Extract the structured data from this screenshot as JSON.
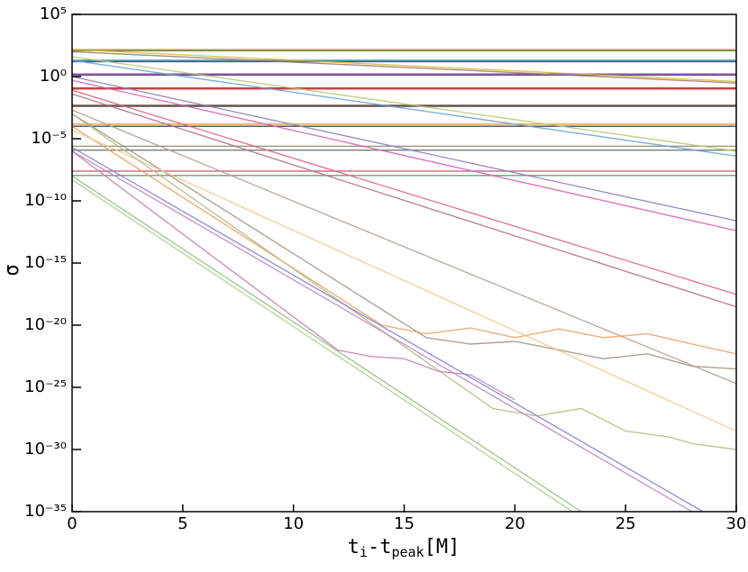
{
  "chart_data": {
    "type": "line",
    "ylabel": "σ",
    "xlabel": [
      "t",
      "i",
      "-t",
      "peak",
      "[M]"
    ],
    "xlim": [
      0,
      30
    ],
    "xticks": [
      0,
      5,
      10,
      15,
      20,
      25,
      30
    ],
    "ylim": [
      1e-35,
      100000.0
    ],
    "yscale": "log",
    "yticks": [
      {
        "value": 1e-35,
        "label": "10⁻³⁵"
      },
      {
        "value": 1e-30,
        "label": "10⁻³⁰"
      },
      {
        "value": 1e-25,
        "label": "10⁻²⁵"
      },
      {
        "value": 1e-20,
        "label": "10⁻²⁰"
      },
      {
        "value": 1e-15,
        "label": "10⁻¹⁵"
      },
      {
        "value": 1e-10,
        "label": "10⁻¹⁰"
      },
      {
        "value": 1e-05,
        "label": "10⁻⁵"
      },
      {
        "value": 1,
        "label": "10⁰"
      },
      {
        "value": 100000.0,
        "label": "10⁵"
      }
    ],
    "series": [
      {
        "color": "#d4a017",
        "x": [
          0,
          30
        ],
        "values": [
          150,
          150
        ]
      },
      {
        "color": "#4a6b3a",
        "x": [
          0,
          30
        ],
        "values": [
          120,
          120
        ]
      },
      {
        "color": "#1a8a8a",
        "x": [
          0,
          30
        ],
        "values": [
          20,
          20
        ]
      },
      {
        "color": "#1f3a7a",
        "x": [
          0,
          30
        ],
        "values": [
          16,
          16
        ]
      },
      {
        "color": "#7a2a8a",
        "x": [
          0,
          30
        ],
        "values": [
          1.6,
          1.6
        ]
      },
      {
        "color": "#4a3a9a",
        "x": [
          0,
          30
        ],
        "values": [
          1.3,
          1.3
        ]
      },
      {
        "color": "#b01818",
        "x": [
          0,
          30
        ],
        "values": [
          0.12,
          0.12
        ]
      },
      {
        "color": "#c82828",
        "x": [
          0,
          30
        ],
        "values": [
          0.1,
          0.1
        ]
      },
      {
        "color": "#6b4a3a",
        "x": [
          0,
          30
        ],
        "values": [
          0.005,
          0.005
        ]
      },
      {
        "color": "#3a3a3a",
        "x": [
          0,
          30
        ],
        "values": [
          0.004,
          0.004
        ]
      },
      {
        "color": "#e08a10",
        "x": [
          0,
          30
        ],
        "values": [
          0.00015,
          0.00015
        ]
      },
      {
        "color": "#2a2a2a",
        "x": [
          0,
          30
        ],
        "values": [
          0.0001,
          0.0001
        ]
      },
      {
        "color": "#8a8a70",
        "x": [
          0,
          30
        ],
        "values": [
          2.5e-06,
          2.5e-06
        ]
      },
      {
        "color": "#5a6a5a",
        "x": [
          0,
          30
        ],
        "values": [
          1.2e-06,
          1.2e-06
        ]
      },
      {
        "color": "#c04a6a",
        "x": [
          0,
          30
        ],
        "values": [
          2.5e-08,
          2.5e-08
        ]
      },
      {
        "color": "#3a9a5a",
        "x": [
          0,
          30
        ],
        "values": [
          1.1e-08,
          1.1e-08
        ]
      },
      {
        "color": "#d8b830",
        "x": [
          0,
          30
        ],
        "values": [
          150,
          0.4
        ]
      },
      {
        "color": "#9a7a6a",
        "x": [
          0,
          30
        ],
        "values": [
          100,
          0.3
        ]
      },
      {
        "color": "#6aa0d8",
        "x": [
          0,
          30
        ],
        "values": [
          20,
          4e-07
        ]
      },
      {
        "color": "#b8c870",
        "x": [
          0,
          30
        ],
        "values": [
          40,
          1e-06
        ]
      },
      {
        "color": "#8a80b8",
        "x": [
          0,
          30
        ],
        "values": [
          1,
          2.5e-12
        ]
      },
      {
        "color": "#d860b0",
        "x": [
          0,
          30
        ],
        "values": [
          0.5,
          4e-13
        ]
      },
      {
        "color": "#e06080",
        "x": [
          0,
          30
        ],
        "values": [
          0.08,
          3e-18
        ]
      },
      {
        "color": "#b07080",
        "x": [
          0,
          30
        ],
        "values": [
          0.04,
          3e-19
        ]
      },
      {
        "color": "#a09080",
        "x": [
          0,
          16,
          18,
          20,
          22,
          24,
          26,
          28,
          30
        ],
        "values": [
          0.001,
          1e-21,
          3e-22,
          5e-22,
          1e-22,
          2e-23,
          5e-23,
          5e-24,
          3e-24
        ]
      },
      {
        "color": "#b0a090",
        "x": [
          0,
          30
        ],
        "values": [
          0.002,
          2e-25
        ]
      },
      {
        "color": "#e8a060",
        "x": [
          0,
          14,
          16,
          18,
          20,
          22,
          24,
          26,
          28,
          30
        ],
        "values": [
          0.0001,
          1e-20,
          2e-21,
          6e-21,
          1e-21,
          5e-21,
          1e-21,
          2e-21,
          3e-22,
          5e-23
        ]
      },
      {
        "color": "#f0c890",
        "x": [
          0,
          30
        ],
        "values": [
          5e-05,
          3e-29
        ]
      },
      {
        "color": "#b8b880",
        "x": [
          0,
          19,
          21,
          23,
          25,
          27,
          28,
          30
        ],
        "values": [
          0.001,
          2e-27,
          5e-28,
          2e-27,
          3e-29,
          1e-29,
          3e-30,
          1e-30
        ]
      },
      {
        "color": "#c080b0",
        "x": [
          0,
          12,
          13.5,
          15,
          16.5,
          18,
          20
        ],
        "values": [
          1e-06,
          1e-22,
          3e-23,
          2e-23,
          2e-24,
          1e-24,
          1e-26
        ]
      },
      {
        "color": "#8080d0",
        "x": [
          0,
          28.5
        ],
        "values": [
          2e-06,
          1e-35
        ]
      },
      {
        "color": "#b888c0",
        "x": [
          0,
          28
        ],
        "values": [
          1e-06,
          1e-35
        ]
      },
      {
        "color": "#90c080",
        "x": [
          0,
          23
        ],
        "values": [
          1e-08,
          1e-35
        ]
      },
      {
        "color": "#a8d090",
        "x": [
          0,
          22.6
        ],
        "values": [
          5e-09,
          1e-35
        ]
      }
    ]
  }
}
